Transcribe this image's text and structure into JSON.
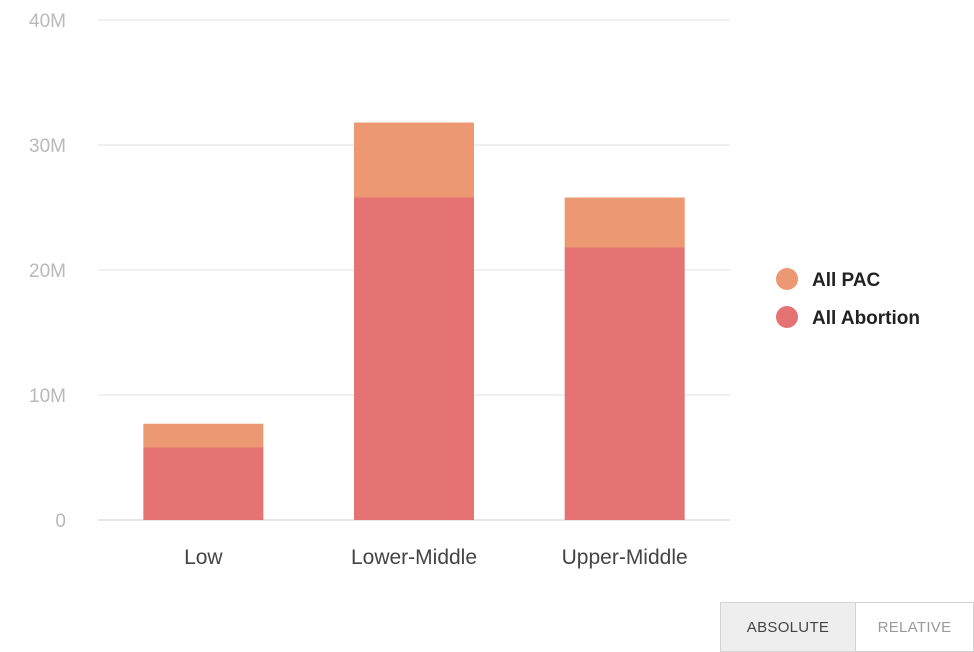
{
  "chart_data": {
    "type": "bar",
    "stacked": true,
    "categories": [
      "Low",
      "Lower-Middle",
      "Upper-Middle"
    ],
    "series": [
      {
        "name": "All Abortion",
        "values": [
          5.8,
          25.8,
          21.8
        ],
        "color": "#e57373"
      },
      {
        "name": "All PAC",
        "values": [
          1.9,
          6.0,
          4.0
        ],
        "color": "#eb9873"
      }
    ],
    "legend_order": [
      "All PAC",
      "All Abortion"
    ],
    "ylim": [
      0,
      40
    ],
    "yticks": [
      0,
      10,
      20,
      30,
      40
    ],
    "ytick_labels": [
      "0",
      "10M",
      "20M",
      "30M",
      "40M"
    ],
    "grid": true,
    "legend_position": "right"
  },
  "controls": {
    "absolute_label": "ABSOLUTE",
    "relative_label": "RELATIVE"
  }
}
